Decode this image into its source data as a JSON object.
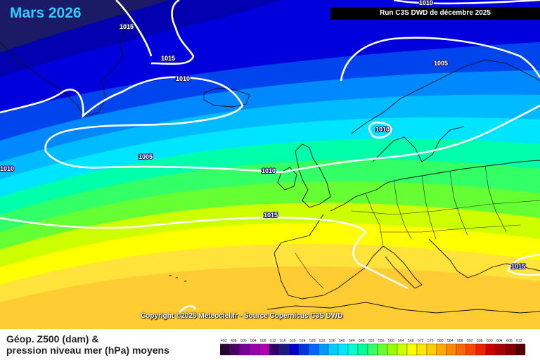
{
  "header": {
    "title": "Mars 2026",
    "run_label": "Run C3S DWD de décembre 2025"
  },
  "copyright": "Copyright ©2025 Meteociel.fr - Source Copernicus C3S DWD",
  "legend": {
    "line1": "Géop. Z500 (dam) &",
    "line2": "pression niveau mer (hPa) moyens",
    "scale_values": [
      "492",
      "496",
      "500",
      "504",
      "508",
      "512",
      "516",
      "520",
      "524",
      "528",
      "532",
      "536",
      "540",
      "544",
      "548",
      "552",
      "556",
      "560",
      "564",
      "568",
      "572",
      "576",
      "580",
      "584",
      "588",
      "592",
      "596",
      "600",
      "604",
      "608",
      "612"
    ],
    "scale_colors": [
      "#2a0033",
      "#4a0066",
      "#7a0099",
      "#9900aa",
      "#b000b0",
      "#330066",
      "#1a1a80",
      "#0000cc",
      "#0033e0",
      "#0066ff",
      "#0099ff",
      "#00ccff",
      "#00e5ff",
      "#00ffcc",
      "#00ff99",
      "#33ff66",
      "#66ff33",
      "#99ff00",
      "#ccff00",
      "#ffff00",
      "#ffe600",
      "#ffcc00",
      "#ffaa00",
      "#ff8800",
      "#ff6600",
      "#ff4400",
      "#ee2200",
      "#cc0000",
      "#aa0000",
      "#880000",
      "#550000"
    ]
  },
  "isobars": [
    {
      "value": "1015",
      "id": "a"
    },
    {
      "value": "1015",
      "id": "b"
    },
    {
      "value": "1010",
      "id": "c"
    },
    {
      "value": "1010",
      "id": "d"
    },
    {
      "value": "1005",
      "id": "e"
    },
    {
      "value": "1005",
      "id": "f"
    },
    {
      "value": "1010",
      "id": "g"
    },
    {
      "value": "1010",
      "id": "h"
    },
    {
      "value": "1015",
      "id": "i"
    },
    {
      "value": "1015",
      "id": "j"
    },
    {
      "value": "1010",
      "id": "k"
    }
  ],
  "colors": {
    "band_dark_navy": "#1a1a66",
    "band_blue": "#0000dd",
    "band_royal": "#0044ee",
    "band_cyan": "#00ccff",
    "band_aqua": "#00ffcc",
    "band_green": "#33ff66",
    "band_yellow": "#ffff00",
    "band_gold": "#ffcc00"
  }
}
